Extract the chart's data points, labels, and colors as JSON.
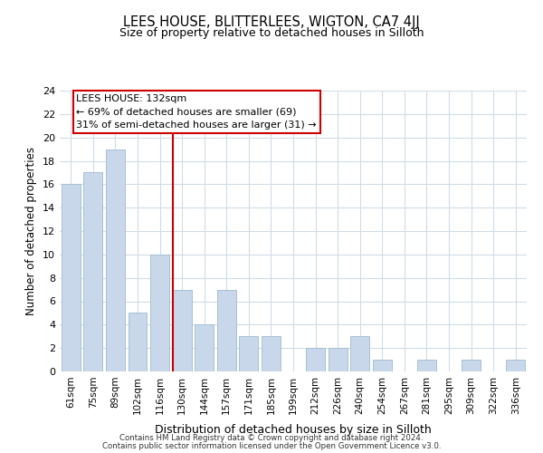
{
  "title": "LEES HOUSE, BLITTERLEES, WIGTON, CA7 4JJ",
  "subtitle": "Size of property relative to detached houses in Silloth",
  "xlabel": "Distribution of detached houses by size in Silloth",
  "ylabel": "Number of detached properties",
  "bar_labels": [
    "61sqm",
    "75sqm",
    "89sqm",
    "102sqm",
    "116sqm",
    "130sqm",
    "144sqm",
    "157sqm",
    "171sqm",
    "185sqm",
    "199sqm",
    "212sqm",
    "226sqm",
    "240sqm",
    "254sqm",
    "267sqm",
    "281sqm",
    "295sqm",
    "309sqm",
    "322sqm",
    "336sqm"
  ],
  "bar_values": [
    16,
    17,
    19,
    5,
    10,
    7,
    4,
    7,
    3,
    3,
    0,
    2,
    2,
    3,
    1,
    0,
    1,
    0,
    1,
    0,
    1
  ],
  "bar_color": "#c8d8ea",
  "bar_edge_color": "#a8c0d4",
  "vline_color": "#cc0000",
  "annotation_title": "LEES HOUSE: 132sqm",
  "annotation_line1": "← 69% of detached houses are smaller (69)",
  "annotation_line2": "31% of semi-detached houses are larger (31) →",
  "annotation_box_color": "#ffffff",
  "annotation_box_edge": "#cc0000",
  "ylim": [
    0,
    24
  ],
  "yticks": [
    0,
    2,
    4,
    6,
    8,
    10,
    12,
    14,
    16,
    18,
    20,
    22,
    24
  ],
  "footer1": "Contains HM Land Registry data © Crown copyright and database right 2024.",
  "footer2": "Contains public sector information licensed under the Open Government Licence v3.0.",
  "bg_color": "#ffffff",
  "grid_color": "#d0dce6"
}
